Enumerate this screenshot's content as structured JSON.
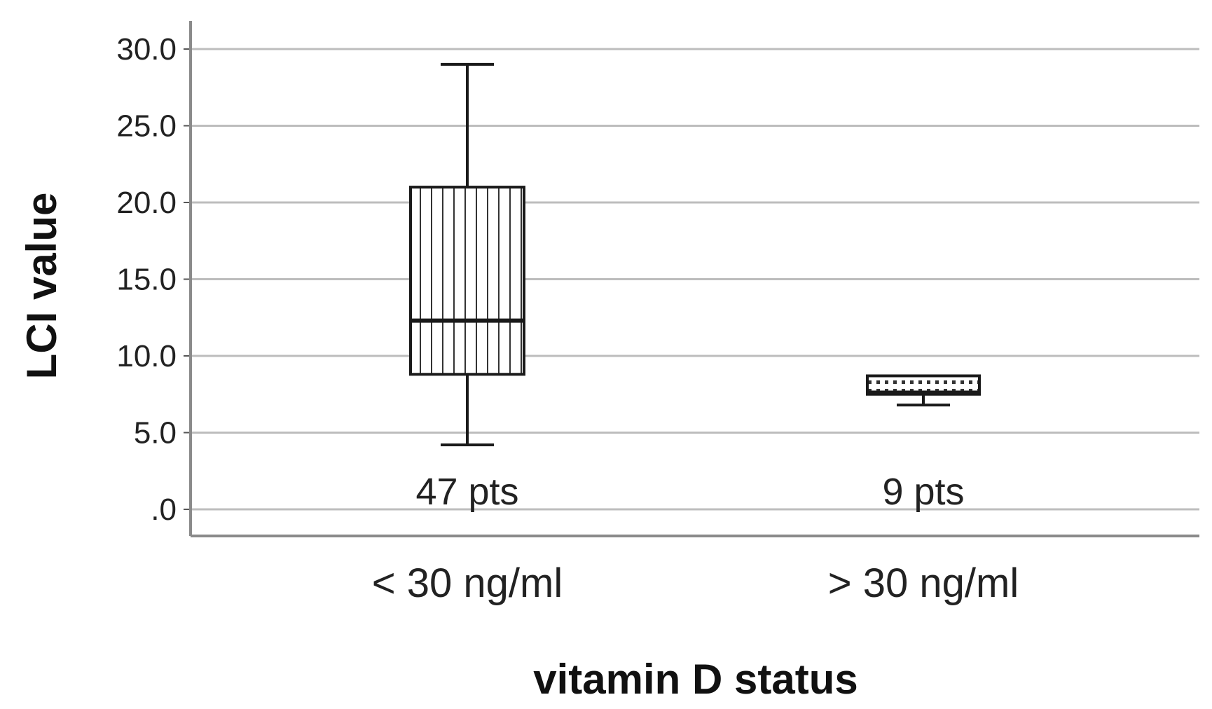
{
  "chart_data": {
    "type": "boxplot",
    "title": "",
    "xlabel": "vitamin D status",
    "ylabel": "LCI value",
    "ylim": [
      0,
      30
    ],
    "yticks": [
      {
        "value": 0,
        "label": ".0"
      },
      {
        "value": 5,
        "label": "5.0"
      },
      {
        "value": 10,
        "label": "10.0"
      },
      {
        "value": 15,
        "label": "15.0"
      },
      {
        "value": 20,
        "label": "20.0"
      },
      {
        "value": 25,
        "label": "25.0"
      },
      {
        "value": 30,
        "label": "30.0"
      }
    ],
    "grid": true,
    "categories": [
      "< 30 ng/ml",
      "> 30 ng/ml"
    ],
    "boxes": [
      {
        "category": "< 30 ng/ml",
        "n_label": "47 pts",
        "whisker_low": 4.2,
        "q1": 8.8,
        "median": 12.3,
        "q3": 21.0,
        "whisker_high": 29.0,
        "pattern": "vertical-lines"
      },
      {
        "category": "> 30 ng/ml",
        "n_label": "9 pts",
        "whisker_low": 6.8,
        "q1": 7.5,
        "median": 7.6,
        "q3": 8.7,
        "whisker_high": 8.7,
        "pattern": "dotted"
      }
    ]
  }
}
